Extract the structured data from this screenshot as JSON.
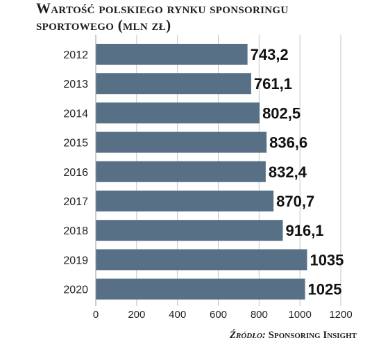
{
  "chart_data": {
    "type": "bar",
    "orientation": "horizontal",
    "title": "Wartość polskiego rynku sponsoringu sportowego (mln zł)",
    "source_label": "Źródło:",
    "source_name": "Sponsoring Insight",
    "categories": [
      "2012",
      "2013",
      "2014",
      "2015",
      "2016",
      "2017",
      "2018",
      "2019",
      "2020"
    ],
    "values": [
      743.2,
      761.1,
      802.5,
      836.6,
      832.4,
      870.7,
      916.1,
      1035,
      1025
    ],
    "value_labels": [
      "743,2",
      "761,1",
      "802,5",
      "836,6",
      "832,4",
      "870,7",
      "916,1",
      "1035",
      "1025"
    ],
    "x_ticks": [
      "0",
      "200",
      "400",
      "600",
      "800",
      "1000",
      "1200"
    ],
    "xlim": [
      0,
      1200
    ],
    "grid": "vertical",
    "legend": "none",
    "bar_color": "#587086",
    "grid_color": "#c4c4c4"
  }
}
